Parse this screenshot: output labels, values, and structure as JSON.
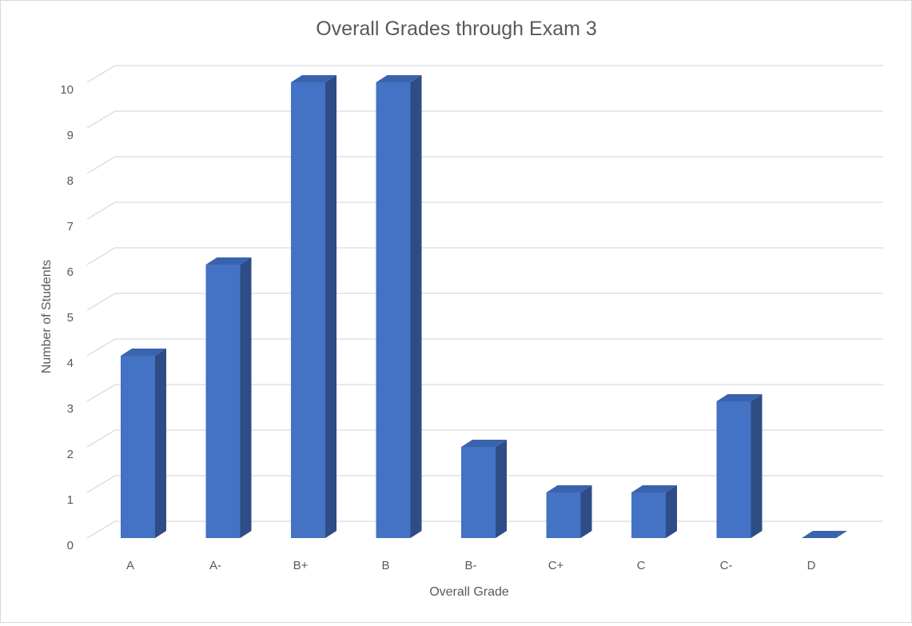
{
  "chart_data": {
    "type": "bar",
    "title": "Overall Grades through Exam 3",
    "xlabel": "Overall Grade",
    "ylabel": "Number of Students",
    "categories": [
      "A",
      "A-",
      "B+",
      "B",
      "B-",
      "C+",
      "C",
      "C-",
      "D"
    ],
    "values": [
      4,
      6,
      10,
      10,
      2,
      1,
      1,
      3,
      0
    ],
    "ylim": [
      0,
      10
    ],
    "yticks": [
      "0",
      "1",
      "2",
      "3",
      "4",
      "5",
      "6",
      "7",
      "8",
      "9",
      "10"
    ],
    "grid": true,
    "legend": "none",
    "style": "3d-column",
    "colors": {
      "bar_front": "#4472c4",
      "bar_side": "#2e4c85",
      "bar_top": "#3a63ad",
      "grid": "#d9d9d9",
      "text": "#595959"
    }
  }
}
